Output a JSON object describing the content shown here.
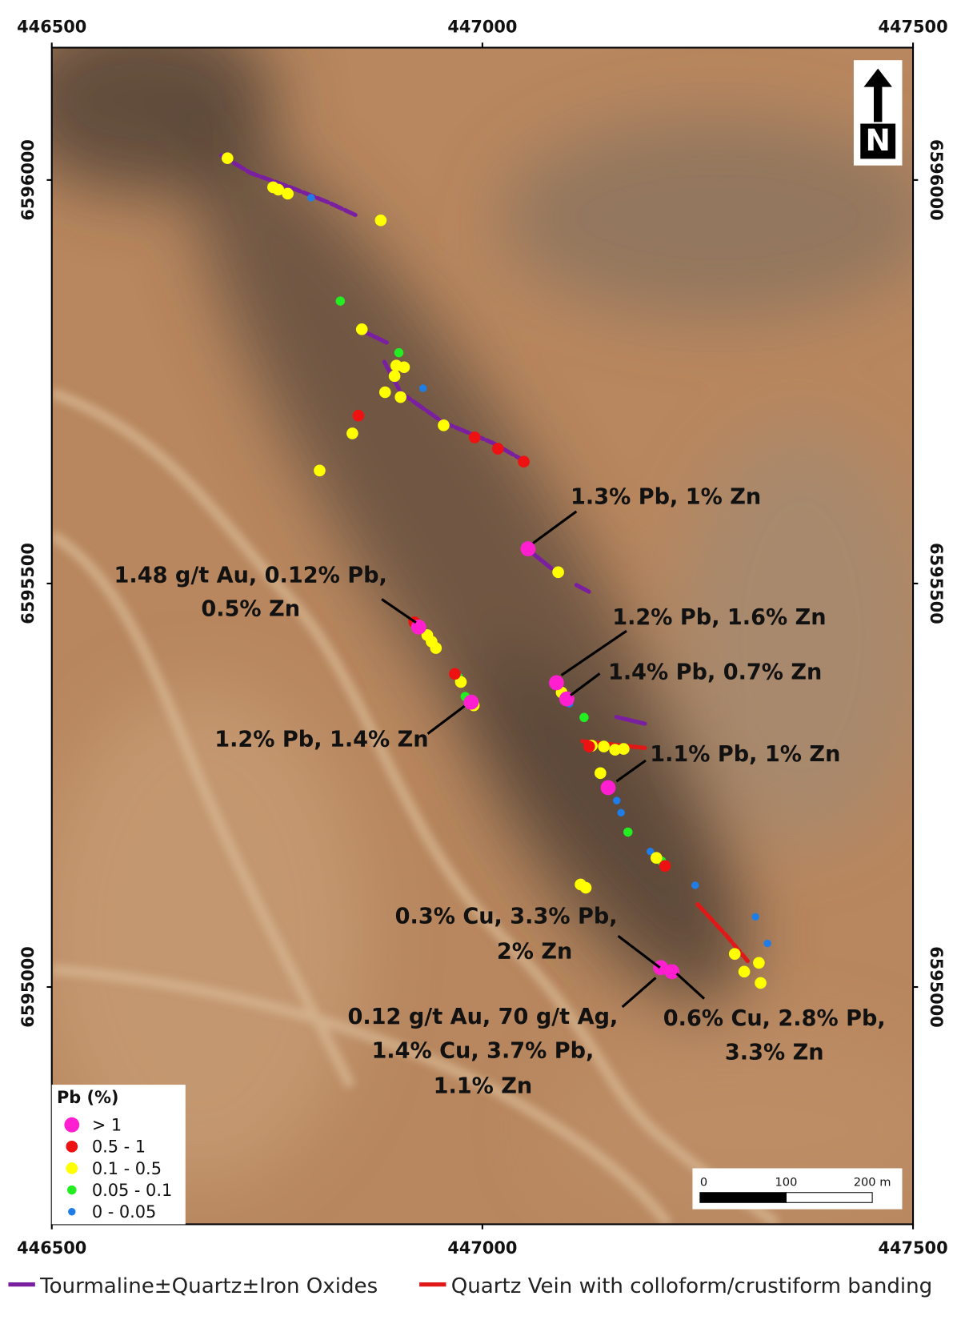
{
  "map": {
    "xlim": [
      446500,
      447500
    ],
    "ylim": [
      6594706,
      6596164
    ],
    "xticks": [
      446500,
      447000,
      447500
    ],
    "yticks": [
      6595000,
      6595500,
      6596000
    ],
    "north_label": "N",
    "legend": {
      "title": "Pb (%)",
      "classes": [
        {
          "label": "> 1",
          "color": "#ff1fd0",
          "samples": [
            {
              "x": 447053,
              "y": 6595543
            },
            {
              "x": 446926,
              "y": 6595446
            },
            {
              "x": 446987,
              "y": 6595353
            },
            {
              "x": 447086,
              "y": 6595377
            },
            {
              "x": 447098,
              "y": 6595357
            },
            {
              "x": 447146,
              "y": 6595247
            },
            {
              "x": 447207,
              "y": 6595024
            },
            {
              "x": 447220,
              "y": 6595019
            }
          ]
        },
        {
          "label": "0.5 - 1",
          "color": "#ee1111",
          "samples": [
            {
              "x": 446856,
              "y": 6595708
            },
            {
              "x": 446991,
              "y": 6595681
            },
            {
              "x": 447018,
              "y": 6595667
            },
            {
              "x": 447048,
              "y": 6595651
            },
            {
              "x": 446921,
              "y": 6595452
            },
            {
              "x": 446968,
              "y": 6595388
            },
            {
              "x": 447124,
              "y": 6595298
            },
            {
              "x": 447212,
              "y": 6595150
            }
          ]
        },
        {
          "label": "0.1 - 0.5",
          "color": "#ffff00",
          "samples": [
            {
              "x": 446704,
              "y": 6596027
            },
            {
              "x": 446757,
              "y": 6595991
            },
            {
              "x": 446763,
              "y": 6595988
            },
            {
              "x": 446774,
              "y": 6595983
            },
            {
              "x": 446882,
              "y": 6595950
            },
            {
              "x": 446860,
              "y": 6595815
            },
            {
              "x": 446900,
              "y": 6595770
            },
            {
              "x": 446909,
              "y": 6595768
            },
            {
              "x": 446898,
              "y": 6595757
            },
            {
              "x": 446887,
              "y": 6595737
            },
            {
              "x": 446905,
              "y": 6595731
            },
            {
              "x": 446849,
              "y": 6595686
            },
            {
              "x": 446955,
              "y": 6595696
            },
            {
              "x": 446811,
              "y": 6595640
            },
            {
              "x": 447088,
              "y": 6595514
            },
            {
              "x": 446936,
              "y": 6595436
            },
            {
              "x": 446941,
              "y": 6595428
            },
            {
              "x": 446946,
              "y": 6595420
            },
            {
              "x": 446975,
              "y": 6595378
            },
            {
              "x": 446990,
              "y": 6595349
            },
            {
              "x": 447092,
              "y": 6595365
            },
            {
              "x": 447127,
              "y": 6595299
            },
            {
              "x": 447141,
              "y": 6595298
            },
            {
              "x": 447154,
              "y": 6595294
            },
            {
              "x": 447164,
              "y": 6595295
            },
            {
              "x": 447137,
              "y": 6595265
            },
            {
              "x": 447114,
              "y": 6595127
            },
            {
              "x": 447120,
              "y": 6595123
            },
            {
              "x": 447202,
              "y": 6595160
            },
            {
              "x": 447293,
              "y": 6595041
            },
            {
              "x": 447304,
              "y": 6595019
            },
            {
              "x": 447321,
              "y": 6595030
            },
            {
              "x": 447323,
              "y": 6595005
            }
          ]
        },
        {
          "label": "0.05 - 0.1",
          "color": "#22ee22",
          "samples": [
            {
              "x": 446835,
              "y": 6595850
            },
            {
              "x": 446903,
              "y": 6595786
            },
            {
              "x": 446972,
              "y": 6595384
            },
            {
              "x": 446980,
              "y": 6595360
            },
            {
              "x": 447118,
              "y": 6595334
            },
            {
              "x": 447169,
              "y": 6595192
            },
            {
              "x": 447208,
              "y": 6595156
            }
          ]
        },
        {
          "label": "0 - 0.05",
          "color": "#1f7de8",
          "samples": [
            {
              "x": 446801,
              "y": 6595978
            },
            {
              "x": 446931,
              "y": 6595742
            },
            {
              "x": 447101,
              "y": 6595351
            },
            {
              "x": 447156,
              "y": 6595231
            },
            {
              "x": 447161,
              "y": 6595216
            },
            {
              "x": 447195,
              "y": 6595168
            },
            {
              "x": 447247,
              "y": 6595126
            },
            {
              "x": 447317,
              "y": 6595087
            },
            {
              "x": 447331,
              "y": 6595054
            }
          ]
        }
      ]
    },
    "annotations": [
      {
        "lines": [
          "1.3% Pb, 1% Zn"
        ]
      },
      {
        "lines": [
          "1.48 g/t Au, 0.12% Pb,",
          "0.5% Zn"
        ]
      },
      {
        "lines": [
          "1.2% Pb, 1.6% Zn"
        ]
      },
      {
        "lines": [
          "1.4% Pb, 0.7% Zn"
        ]
      },
      {
        "lines": [
          "1.2% Pb, 1.4% Zn"
        ]
      },
      {
        "lines": [
          "1.1% Pb, 1% Zn"
        ]
      },
      {
        "lines": [
          "0.3% Cu, 3.3% Pb,",
          "2% Zn"
        ]
      },
      {
        "lines": [
          "0.12 g/t Au, 70 g/t Ag,",
          "1.4% Cu, 3.7% Pb,",
          "1.1% Zn"
        ]
      },
      {
        "lines": [
          "0.6% Cu, 2.8% Pb,",
          "3.3% Zn"
        ]
      }
    ],
    "scale_bar": {
      "ticks": [
        0,
        100,
        {
          "value": 200,
          "label": "200 m"
        }
      ]
    },
    "line_legend": [
      {
        "label": "Tourmaline±Quartz±Iron Oxides",
        "color": "#7a1fa0"
      },
      {
        "label": "Quartz Vein with colloform/crustiform banding",
        "color": "#e01818"
      }
    ]
  }
}
